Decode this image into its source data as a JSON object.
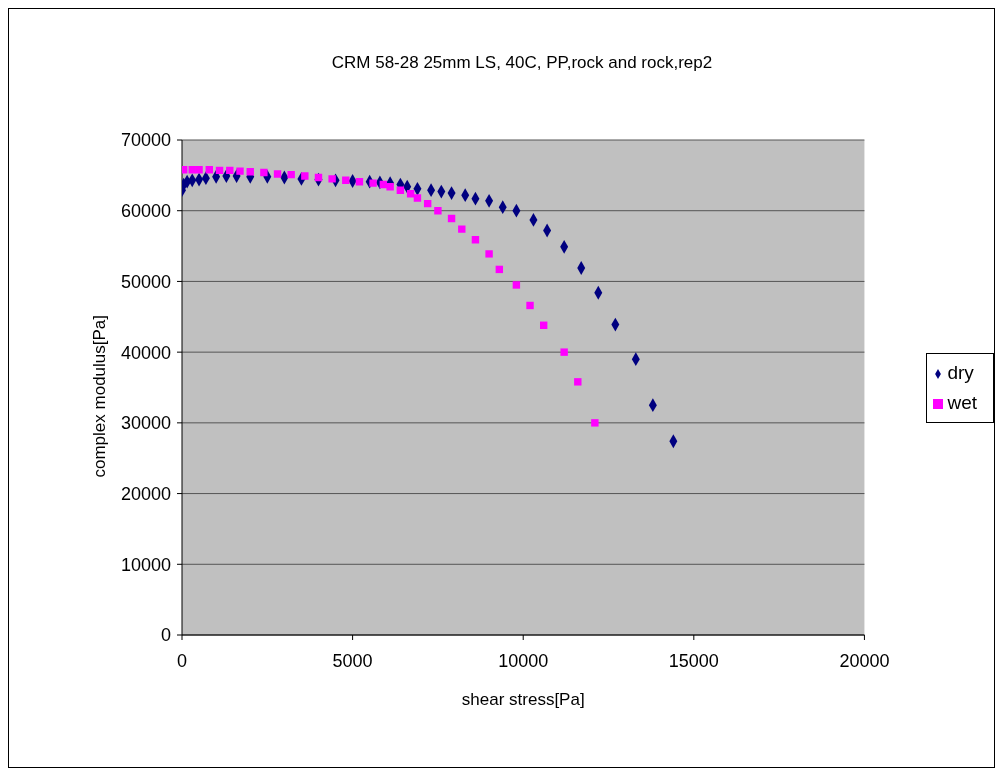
{
  "chart_data": {
    "type": "scatter",
    "title": "CRM 58-28 25mm LS, 40C, PP,rock and rock,rep2",
    "xlabel": "shear stress[Pa]",
    "ylabel": "complex modulus[Pa]",
    "xlim": [
      0,
      20000
    ],
    "xticks": [
      0,
      5000,
      10000,
      15000,
      20000
    ],
    "ylim": [
      0,
      70000
    ],
    "yticks": [
      0,
      10000,
      20000,
      30000,
      40000,
      50000,
      60000,
      70000
    ],
    "grid": "y",
    "legend": "right",
    "series": [
      {
        "name": "dry",
        "color": "#000080",
        "marker": "diamond",
        "x": [
          0,
          50,
          150,
          300,
          500,
          700,
          1000,
          1300,
          1600,
          2000,
          2500,
          3000,
          3500,
          4000,
          4500,
          5000,
          5500,
          5800,
          6100,
          6400,
          6600,
          6900,
          7300,
          7600,
          7900,
          8300,
          8600,
          9000,
          9400,
          9800,
          10300,
          10700,
          11200,
          11700,
          12200,
          12700,
          13300,
          13800,
          14400
        ],
        "values": [
          62900,
          63700,
          64100,
          64300,
          64400,
          64600,
          64800,
          64900,
          64900,
          64800,
          64800,
          64700,
          64500,
          64400,
          64300,
          64200,
          64100,
          64000,
          63900,
          63700,
          63400,
          63100,
          62900,
          62700,
          62500,
          62200,
          61700,
          61400,
          60500,
          60000,
          58700,
          57200,
          54900,
          51900,
          48400,
          43900,
          39000,
          32500,
          27400
        ]
      },
      {
        "name": "wet",
        "color": "#ff00ff",
        "marker": "square",
        "x": [
          50,
          300,
          500,
          800,
          1100,
          1400,
          1700,
          2000,
          2400,
          2800,
          3200,
          3600,
          4000,
          4400,
          4800,
          5200,
          5600,
          5900,
          6100,
          6400,
          6700,
          6900,
          7200,
          7500,
          7900,
          8200,
          8600,
          9000,
          9300,
          9800,
          10200,
          10600,
          11200,
          11600,
          12100
        ],
        "values": [
          65800,
          65800,
          65800,
          65800,
          65700,
          65700,
          65600,
          65500,
          65400,
          65200,
          65100,
          64900,
          64700,
          64500,
          64300,
          64100,
          63900,
          63700,
          63400,
          62900,
          62400,
          61800,
          61000,
          60000,
          58900,
          57400,
          55900,
          53900,
          51700,
          49500,
          46600,
          43800,
          40000,
          35800,
          30000
        ]
      }
    ]
  }
}
